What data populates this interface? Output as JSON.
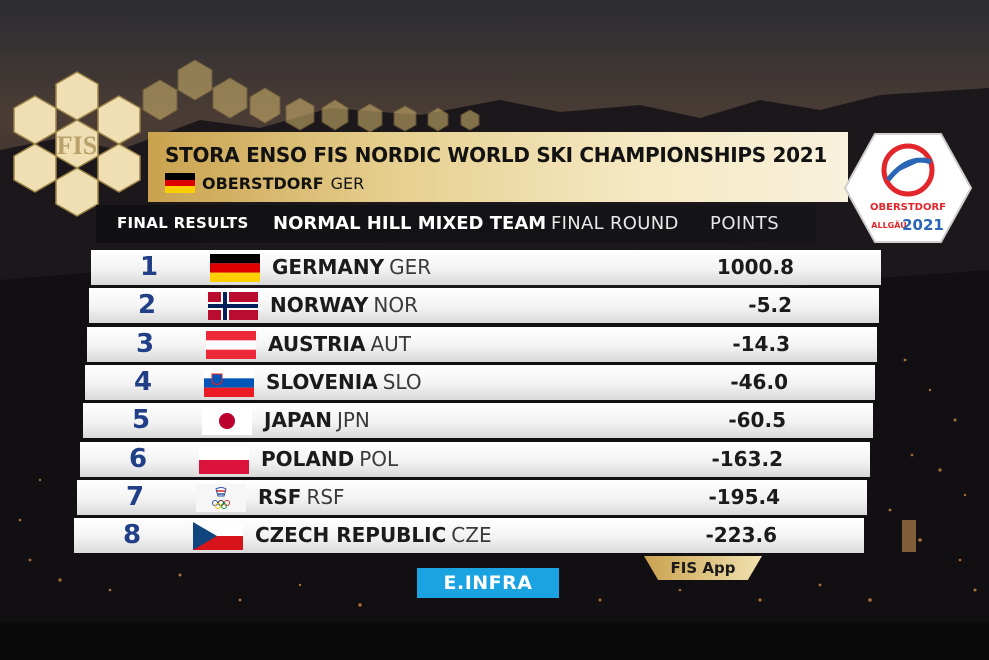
{
  "header": {
    "title": "STORA ENSO FIS NORDIC WORLD SKI CHAMPIONSHIPS 2021",
    "venue": "OBERSTDORF",
    "venue_code": "GER"
  },
  "subheader": {
    "final_results": "FINAL RESULTS",
    "event": "NORMAL HILL MIXED TEAM",
    "round": "FINAL ROUND",
    "points": "POINTS"
  },
  "logos": {
    "fis": "FIS",
    "event_city": "OBERSTDORF",
    "event_region": "ALLGÄU",
    "event_year": "2021"
  },
  "results": [
    {
      "rank": "1",
      "country": "GERMANY",
      "code": "GER",
      "points": "1000.8",
      "flag": "germany-flag-icon"
    },
    {
      "rank": "2",
      "country": "NORWAY",
      "code": "NOR",
      "points": "-5.2",
      "flag": "norway-flag-icon"
    },
    {
      "rank": "3",
      "country": "AUSTRIA",
      "code": "AUT",
      "points": "-14.3",
      "flag": "austria-flag-icon"
    },
    {
      "rank": "4",
      "country": "SLOVENIA",
      "code": "SLO",
      "points": "-46.0",
      "flag": "slovenia-flag-icon"
    },
    {
      "rank": "5",
      "country": "JAPAN",
      "code": "JPN",
      "points": "-60.5",
      "flag": "japan-flag-icon"
    },
    {
      "rank": "6",
      "country": "POLAND",
      "code": "POL",
      "points": "-163.2",
      "flag": "poland-flag-icon"
    },
    {
      "rank": "7",
      "country": "RSF",
      "code": "RSF",
      "points": "-195.4",
      "flag": "rsf-emblem-icon"
    },
    {
      "rank": "8",
      "country": "CZECH REPUBLIC",
      "code": "CZE",
      "points": "-223.6",
      "flag": "czech-flag-icon"
    }
  ],
  "footer": {
    "sponsor": "E.INFRA",
    "app": "FIS App"
  },
  "colors": {
    "rank": "#203f86",
    "gold": "#c9a24e",
    "sponsor_blue": "#1aa3e0"
  }
}
